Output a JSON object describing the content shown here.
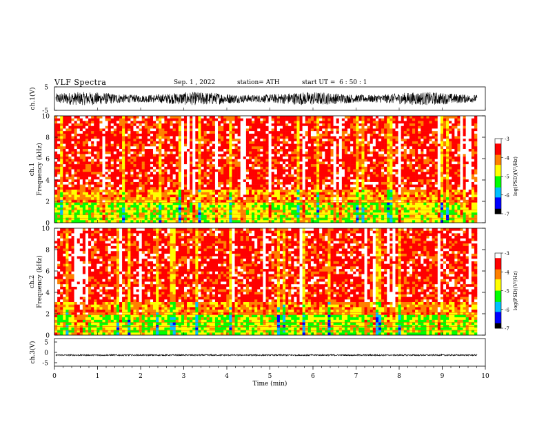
{
  "header": {
    "title": "VLF Spectra",
    "date": "Sep. 1 , 2022",
    "station": "station= ATH",
    "start": "start UT =  6 : 50 : 1"
  },
  "colors": {
    "spectrogram": [
      "#000000",
      "#0000ff",
      "#00bfff",
      "#00ff00",
      "#ffff00",
      "#ff8000",
      "#ff0000",
      "#ffffff"
    ]
  },
  "chart_data": [
    {
      "type": "line",
      "panel": "ch1-waveform",
      "ylabel": "ch.1(V)",
      "ylim": [
        -5,
        5
      ],
      "ytick_labels": [
        "5",
        "-5"
      ],
      "xlim": [
        0,
        10
      ],
      "series_summary": "dense oscillating waveform, approx -3 to 3 V"
    },
    {
      "type": "heatmap",
      "panel": "ch1-spectrogram",
      "ylabel": "ch.1\nFrequency (kHz)",
      "ylim": [
        0,
        10
      ],
      "ytick_labels": [
        "0",
        "2",
        "4",
        "6",
        "8",
        "10"
      ],
      "xlim": [
        0,
        9.8
      ],
      "colorbar": {
        "label": "log(PSD)(V²/Hz)",
        "range": [
          -7,
          -3
        ],
        "tick_labels": [
          "-3",
          "-4",
          "-5",
          "-6",
          "-7"
        ]
      }
    },
    {
      "type": "heatmap",
      "panel": "ch2-spectrogram",
      "ylabel": "ch.2\nFrequency (kHz)",
      "ylim": [
        0,
        10
      ],
      "ytick_labels": [
        "0",
        "2",
        "4",
        "6",
        "8",
        "10"
      ],
      "xlim": [
        0,
        9.8
      ],
      "colorbar": {
        "label": "log(PSD)(V²/Hz)",
        "range": [
          -7,
          -3
        ],
        "tick_labels": [
          "-3",
          "-4",
          "-5",
          "-6",
          "-7"
        ]
      }
    },
    {
      "type": "line",
      "panel": "ch3-waveform",
      "ylabel": "ch.3(V)",
      "ylim": [
        -5,
        5
      ],
      "ytick_labels": [
        "5",
        "0",
        "-5"
      ],
      "xlim": [
        0,
        10
      ],
      "series_summary": "near-flat line around -1 V"
    }
  ],
  "xaxis": {
    "label": "Time (min)",
    "tick_labels": [
      "0",
      "1",
      "2",
      "3",
      "4",
      "5",
      "6",
      "7",
      "8",
      "9",
      "10"
    ]
  }
}
